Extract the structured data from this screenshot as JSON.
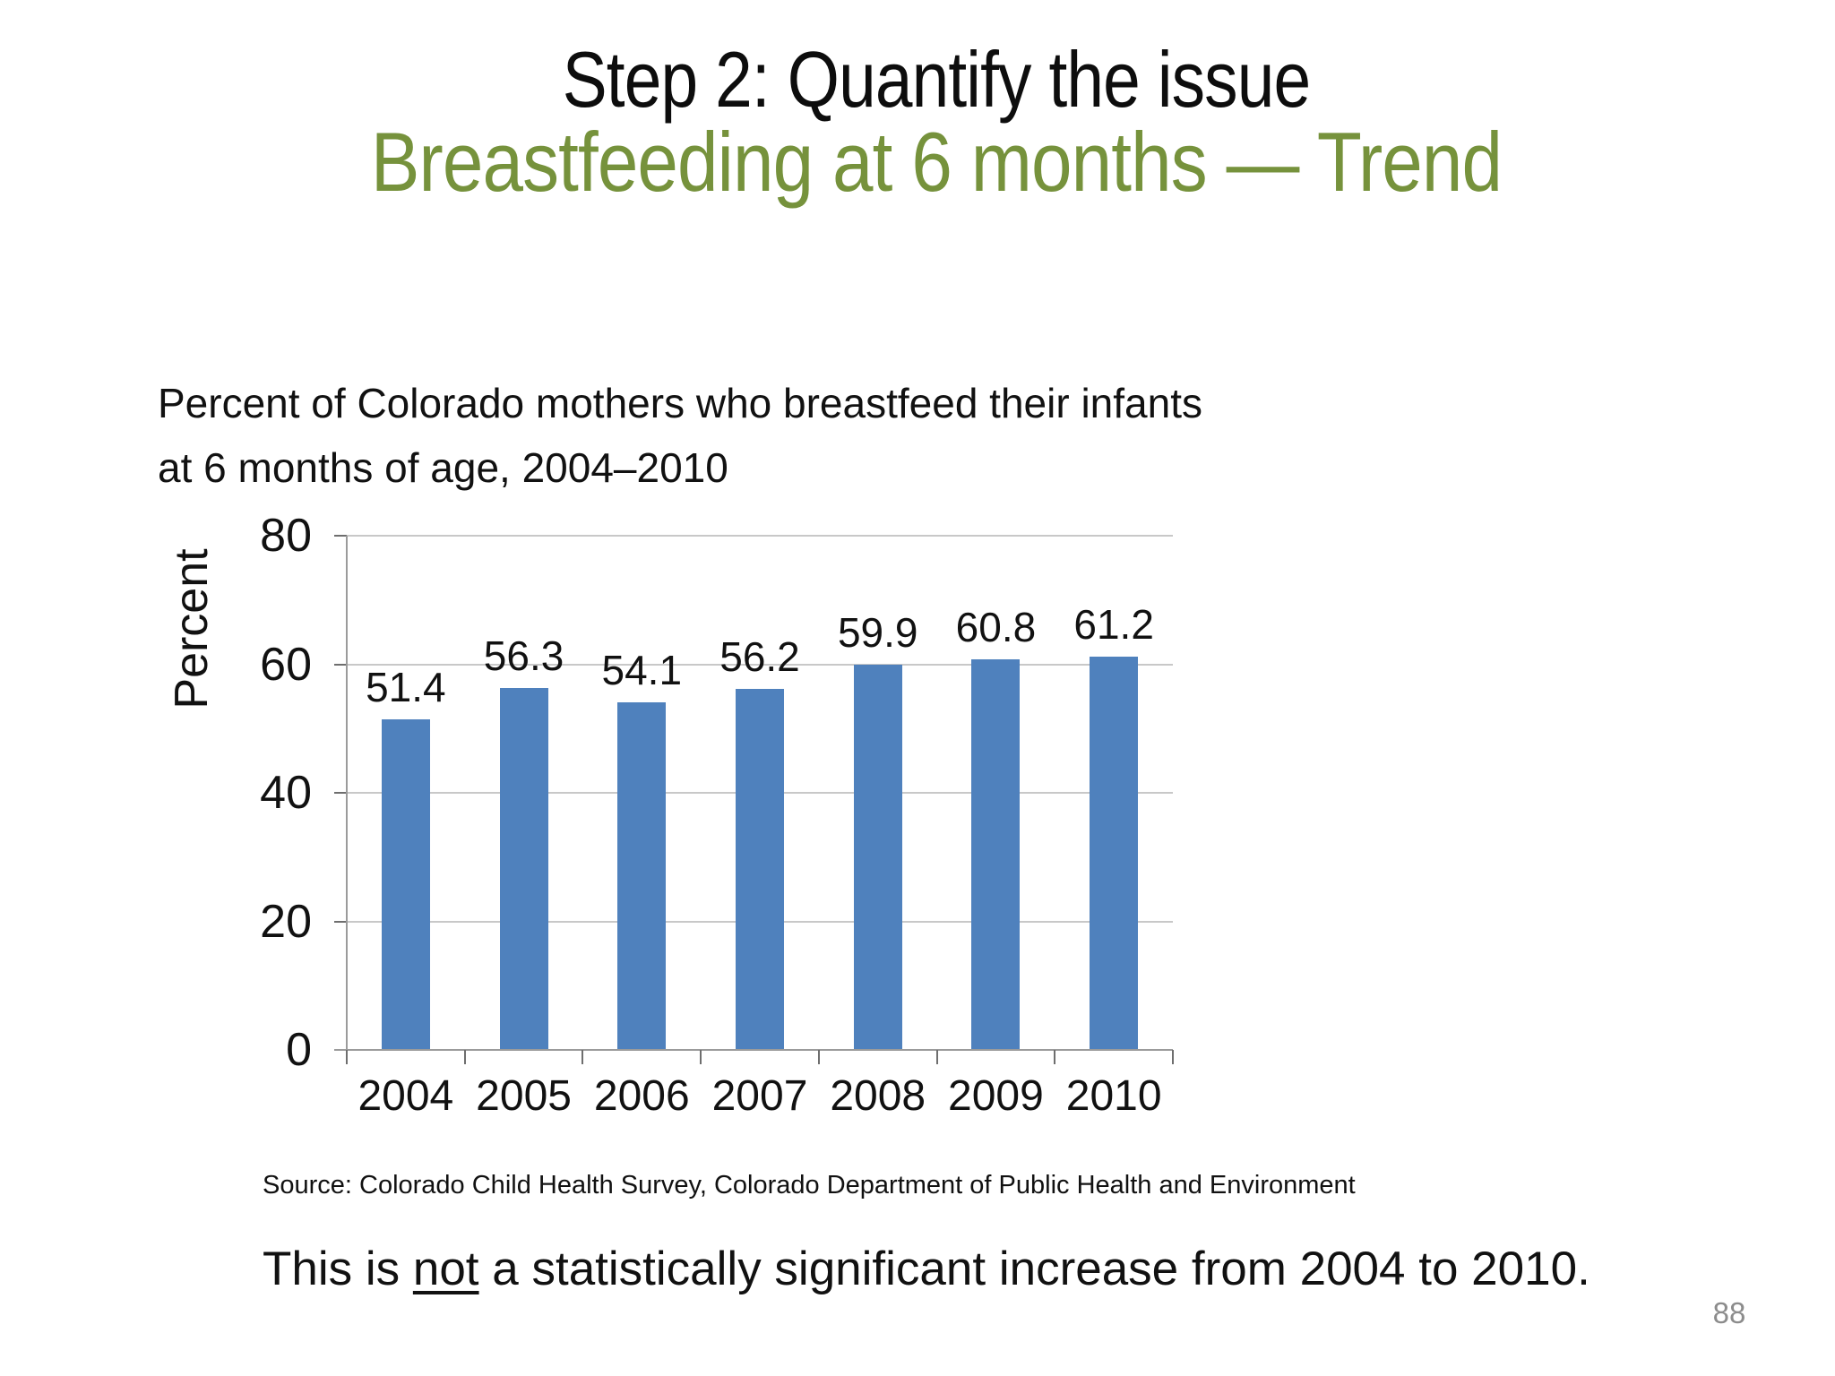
{
  "slide": {
    "title": "Step 2: Quantify the issue",
    "subtitle": "Breastfeeding at 6 months — Trend",
    "source_note": "Source: Colorado Child Health Survey, Colorado Department of Public Health and Environment",
    "footnote_pre": "This is ",
    "footnote_emph": "not",
    "footnote_post": " a statistically significant increase from 2004 to 2010.",
    "page_number": "88",
    "colors": {
      "title_black": "#0d0d0d",
      "subtitle_green": "#76923C",
      "bar_blue": "#4F81BD",
      "page_number_gray": "#8C8C8C"
    }
  },
  "chart_data": {
    "type": "bar",
    "title_line1": "Percent of Colorado mothers who breastfeed their infants",
    "title_line2": "at 6 months of age, 2004–2010",
    "categories": [
      "2004",
      "2005",
      "2006",
      "2007",
      "2008",
      "2009",
      "2010"
    ],
    "values": [
      51.4,
      56.3,
      54.1,
      56.2,
      59.9,
      60.8,
      61.2
    ],
    "ylabel": "Percent",
    "xlabel": "",
    "ylim": [
      0,
      80
    ],
    "yticks": [
      0,
      20,
      40,
      60,
      80
    ],
    "grid": true,
    "legend": false,
    "bar_color": "#4F81BD",
    "data_labels": "outside-end"
  }
}
